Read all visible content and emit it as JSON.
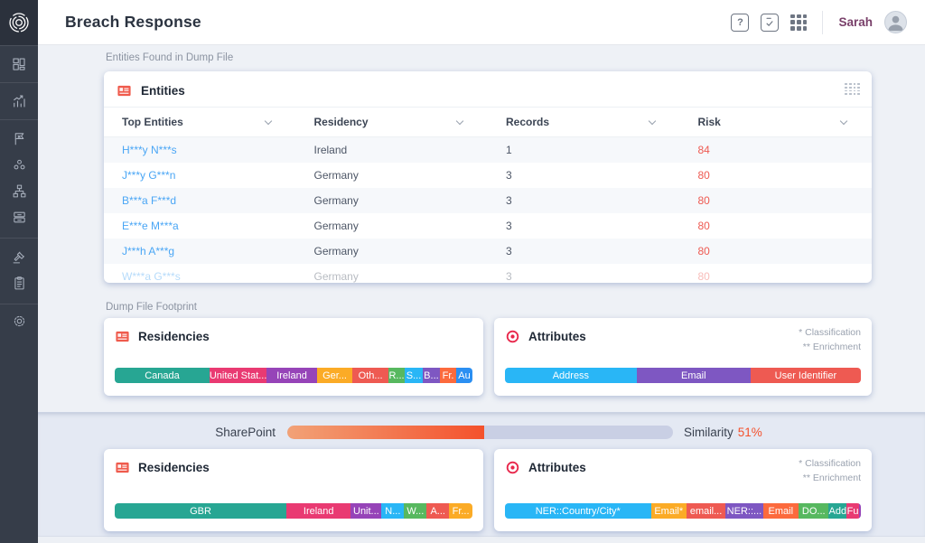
{
  "app": {
    "title": "Breach Response"
  },
  "colors": {
    "sidebar_bg": "#363d49",
    "content_bg": "#eef1f6",
    "lower_band_bg": "#e4e9f3",
    "link_blue": "#4aa6f5",
    "risk_red": "#ee5a52",
    "user_name": "#79406a",
    "entities_icon": "#ef5b4d",
    "attributes_icon": "#e8274b"
  },
  "sidebar": {
    "icons": [
      "app-logo",
      "dashboard-icon",
      "analytics-icon",
      "flag-icon",
      "groups-icon",
      "hierarchy-icon",
      "archive-icon",
      "gavel-icon",
      "clipboard-icon",
      "settings-icon"
    ]
  },
  "header": {
    "icons": [
      "help-icon",
      "tasks-icon",
      "apps-icon"
    ],
    "user_name": "Sarah"
  },
  "sections": {
    "entities_label": "Entities Found in Dump File",
    "footprint_label": "Dump File Footprint"
  },
  "entities_table": {
    "title": "Entities",
    "columns": [
      "Top Entities",
      "Residency",
      "Records",
      "Risk"
    ],
    "rows": [
      {
        "name": "H***y N***s",
        "residency": "Ireland",
        "records": "1",
        "risk": "84"
      },
      {
        "name": "J***y G***n",
        "residency": "Germany",
        "records": "3",
        "risk": "80"
      },
      {
        "name": "B***a F***d",
        "residency": "Germany",
        "records": "3",
        "risk": "80"
      },
      {
        "name": "E***e M***a",
        "residency": "Germany",
        "records": "3",
        "risk": "80"
      },
      {
        "name": "J***h A***g",
        "residency": "Germany",
        "records": "3",
        "risk": "80"
      },
      {
        "name": "W***a G***s",
        "residency": "Germany",
        "records": "3",
        "risk": "80"
      }
    ]
  },
  "footprint_top": {
    "residencies": {
      "title": "Residencies",
      "segments": [
        {
          "label": "Canada",
          "color": "#27a693",
          "width_pct": 26.5
        },
        {
          "label": "United Stat...",
          "color": "#e93a72",
          "width_pct": 16
        },
        {
          "label": "Ireland",
          "color": "#9644b8",
          "width_pct": 14
        },
        {
          "label": "Ger...",
          "color": "#fbab26",
          "width_pct": 10
        },
        {
          "label": "Oth...",
          "color": "#ee5a52",
          "width_pct": 10
        },
        {
          "label": "R...",
          "color": "#57b85f",
          "width_pct": 4.6
        },
        {
          "label": "S...",
          "color": "#29b6f6",
          "width_pct": 5
        },
        {
          "label": "B...",
          "color": "#7e57c2",
          "width_pct": 4.8
        },
        {
          "label": "Fr.",
          "color": "#fc6a3d",
          "width_pct": 4.6
        },
        {
          "label": "Au",
          "color": "#2b8ff2",
          "width_pct": 4.5
        }
      ]
    },
    "attributes": {
      "title": "Attributes",
      "legend_line1": "* Classification",
      "legend_line2": "** Enrichment",
      "segments": [
        {
          "label": "Address",
          "color": "#29b6f6",
          "width_pct": 37
        },
        {
          "label": "Email",
          "color": "#7e57c2",
          "width_pct": 32
        },
        {
          "label": "User Identifier",
          "color": "#ee5a52",
          "width_pct": 31
        }
      ]
    }
  },
  "comparison": {
    "source": "SharePoint",
    "bar_fill_pct": 51,
    "fill_from": "#f2a277",
    "fill_to": "#f4512c",
    "track_color": "#c9cfe4",
    "similarity_label": "Similarity",
    "similarity_value": "51%",
    "similarity_value_color": "#f4512c"
  },
  "footprint_bottom": {
    "residencies": {
      "title": "Residencies",
      "segments": [
        {
          "label": "GBR",
          "color": "#27a693",
          "width_pct": 48
        },
        {
          "label": "Ireland",
          "color": "#e93a72",
          "width_pct": 18
        },
        {
          "label": "Unit...",
          "color": "#9644b8",
          "width_pct": 8.6
        },
        {
          "label": "N...",
          "color": "#29b6f6",
          "width_pct": 6.3
        },
        {
          "label": "W...",
          "color": "#57b85f",
          "width_pct": 6.3
        },
        {
          "label": "A...",
          "color": "#ee5a52",
          "width_pct": 6.3
        },
        {
          "label": "Fr...",
          "color": "#fbab26",
          "width_pct": 6.5
        }
      ]
    },
    "attributes": {
      "title": "Attributes",
      "legend_line1": "* Classification",
      "legend_line2": "** Enrichment",
      "segments": [
        {
          "label": "NER::Country/City*",
          "color": "#29b6f6",
          "width_pct": 41
        },
        {
          "label": "Email*",
          "color": "#fbab26",
          "width_pct": 10
        },
        {
          "label": "email...",
          "color": "#ee5a52",
          "width_pct": 11
        },
        {
          "label": "NER::...",
          "color": "#7e57c2",
          "width_pct": 10.5
        },
        {
          "label": "Email",
          "color": "#fc6a3d",
          "width_pct": 10
        },
        {
          "label": "DO...",
          "color": "#57b85f",
          "width_pct": 8.5
        },
        {
          "label": "Add",
          "color": "#27a693",
          "width_pct": 5
        },
        {
          "label": "Fu",
          "color": "#e93a72",
          "width_pct": 3.5
        },
        {
          "label": "",
          "color": "#9644b8",
          "width_pct": 1.5
        }
      ]
    }
  }
}
